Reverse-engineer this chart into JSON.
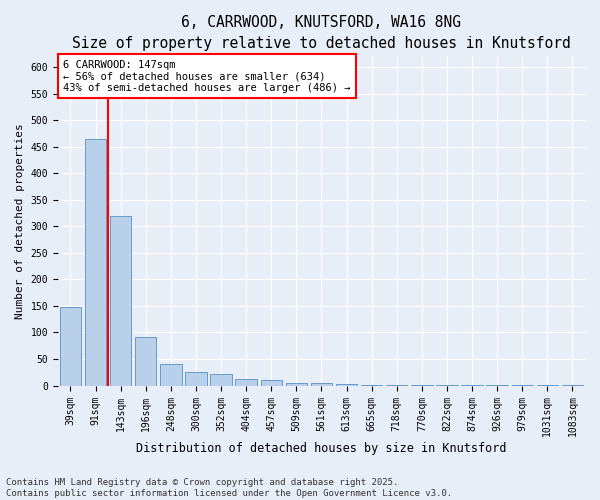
{
  "title_line1": "6, CARRWOOD, KNUTSFORD, WA16 8NG",
  "title_line2": "Size of property relative to detached houses in Knutsford",
  "xlabel": "Distribution of detached houses by size in Knutsford",
  "ylabel": "Number of detached properties",
  "categories": [
    "39sqm",
    "91sqm",
    "143sqm",
    "196sqm",
    "248sqm",
    "300sqm",
    "352sqm",
    "404sqm",
    "457sqm",
    "509sqm",
    "561sqm",
    "613sqm",
    "665sqm",
    "718sqm",
    "770sqm",
    "822sqm",
    "874sqm",
    "926sqm",
    "979sqm",
    "1031sqm",
    "1083sqm"
  ],
  "values": [
    148,
    465,
    320,
    92,
    40,
    25,
    22,
    12,
    10,
    5,
    4,
    3,
    2,
    2,
    2,
    1,
    1,
    1,
    1,
    1,
    1
  ],
  "bar_color": "#b8d0ea",
  "bar_edge_color": "#6699cc",
  "vline_index": 1.5,
  "vline_color": "red",
  "vline_linewidth": 1.5,
  "ylim": [
    0,
    620
  ],
  "yticks": [
    0,
    50,
    100,
    150,
    200,
    250,
    300,
    350,
    400,
    450,
    500,
    550,
    600
  ],
  "annotation_text": "6 CARRWOOD: 147sqm\n← 56% of detached houses are smaller (634)\n43% of semi-detached houses are larger (486) →",
  "annotation_box_color": "white",
  "annotation_box_edgecolor": "red",
  "background_color": "#e8eef8",
  "grid_color": "white",
  "footer_line1": "Contains HM Land Registry data © Crown copyright and database right 2025.",
  "footer_line2": "Contains public sector information licensed under the Open Government Licence v3.0.",
  "title_fontsize": 10.5,
  "subtitle_fontsize": 9,
  "xlabel_fontsize": 8.5,
  "ylabel_fontsize": 8,
  "tick_fontsize": 7,
  "annotation_fontsize": 7.5,
  "footer_fontsize": 6.5
}
